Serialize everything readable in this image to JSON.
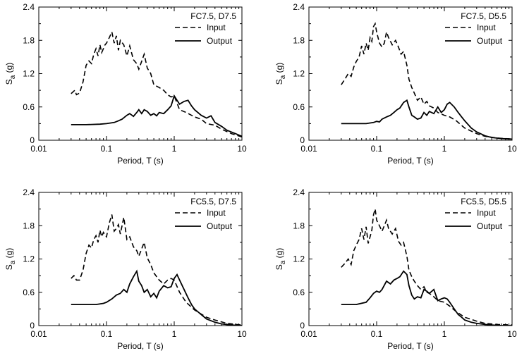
{
  "chart_data": [
    {
      "type": "line",
      "title": "FC7.5, D7.5",
      "xlabel": "Period, T (s)",
      "ylabel_main": "S",
      "ylabel_sub": "a",
      "ylabel_unit": " (g)",
      "xscale": "log",
      "xlim": [
        0.01,
        10
      ],
      "ylim": [
        0,
        2.4
      ],
      "xticks": [
        "0.01",
        "0.1",
        "1",
        "10"
      ],
      "yticks": [
        "0",
        "0.6",
        "1.2",
        "1.8",
        "2.4"
      ],
      "legend_position": "top-right",
      "series": [
        {
          "name": "Input",
          "style": "dashed",
          "x": [
            0.03,
            0.034,
            0.036,
            0.04,
            0.045,
            0.05,
            0.055,
            0.06,
            0.065,
            0.07,
            0.075,
            0.08,
            0.085,
            0.09,
            0.095,
            0.1,
            0.11,
            0.12,
            0.13,
            0.14,
            0.15,
            0.16,
            0.18,
            0.2,
            0.22,
            0.25,
            0.28,
            0.3,
            0.33,
            0.36,
            0.4,
            0.45,
            0.5,
            0.6,
            0.7,
            0.8,
            0.9,
            1.0,
            1.2,
            1.5,
            2.0,
            2.5,
            3.0,
            4.0,
            5.0,
            7.0,
            10.0
          ],
          "y": [
            0.84,
            0.9,
            0.82,
            0.85,
            1.05,
            1.35,
            1.43,
            1.38,
            1.55,
            1.65,
            1.52,
            1.72,
            1.58,
            1.65,
            1.72,
            1.75,
            1.85,
            1.95,
            1.75,
            1.88,
            1.62,
            1.8,
            1.72,
            1.52,
            1.7,
            1.45,
            1.38,
            1.28,
            1.42,
            1.55,
            1.3,
            1.2,
            1.0,
            0.95,
            0.9,
            0.82,
            0.78,
            0.8,
            0.55,
            0.5,
            0.42,
            0.38,
            0.3,
            0.27,
            0.2,
            0.12,
            0.06
          ]
        },
        {
          "name": "Output",
          "style": "solid",
          "x": [
            0.03,
            0.05,
            0.08,
            0.1,
            0.13,
            0.15,
            0.17,
            0.2,
            0.22,
            0.25,
            0.28,
            0.3,
            0.33,
            0.36,
            0.4,
            0.45,
            0.5,
            0.55,
            0.6,
            0.7,
            0.8,
            0.9,
            1.0,
            1.1,
            1.2,
            1.4,
            1.6,
            1.8,
            2.0,
            2.5,
            3.0,
            3.5,
            4.0,
            5.0,
            6.0,
            8.0,
            10.0
          ],
          "y": [
            0.28,
            0.28,
            0.29,
            0.3,
            0.32,
            0.35,
            0.38,
            0.45,
            0.48,
            0.43,
            0.5,
            0.55,
            0.48,
            0.55,
            0.52,
            0.45,
            0.48,
            0.44,
            0.5,
            0.48,
            0.55,
            0.62,
            0.8,
            0.72,
            0.65,
            0.7,
            0.72,
            0.62,
            0.55,
            0.45,
            0.4,
            0.44,
            0.32,
            0.25,
            0.18,
            0.12,
            0.07
          ]
        }
      ]
    },
    {
      "type": "line",
      "title": "FC7.5, D5.5",
      "xlabel": "Period, T (s)",
      "ylabel_main": "S",
      "ylabel_sub": "a",
      "ylabel_unit": " (g)",
      "xscale": "log",
      "xlim": [
        0.01,
        10
      ],
      "ylim": [
        0,
        2.4
      ],
      "xticks": [
        "0.01",
        "0.1",
        "1",
        "10"
      ],
      "yticks": [
        "0",
        "0.6",
        "1.2",
        "1.8",
        "2.4"
      ],
      "legend_position": "top-right",
      "series": [
        {
          "name": "Input",
          "style": "dashed",
          "x": [
            0.03,
            0.034,
            0.038,
            0.042,
            0.046,
            0.05,
            0.055,
            0.06,
            0.065,
            0.07,
            0.075,
            0.08,
            0.085,
            0.09,
            0.095,
            0.1,
            0.11,
            0.12,
            0.13,
            0.14,
            0.15,
            0.17,
            0.19,
            0.21,
            0.23,
            0.25,
            0.28,
            0.3,
            0.33,
            0.36,
            0.4,
            0.45,
            0.5,
            0.55,
            0.6,
            0.7,
            0.8,
            1.0,
            1.2,
            1.5,
            2.0,
            3.0,
            4.0,
            6.0,
            10.0
          ],
          "y": [
            1.0,
            1.1,
            1.2,
            1.15,
            1.32,
            1.42,
            1.5,
            1.7,
            1.55,
            1.75,
            1.62,
            1.85,
            1.78,
            2.05,
            2.1,
            1.95,
            1.75,
            1.68,
            1.75,
            1.95,
            1.85,
            1.72,
            1.8,
            1.68,
            1.55,
            1.6,
            1.35,
            1.1,
            0.95,
            0.85,
            0.72,
            0.78,
            0.65,
            0.7,
            0.62,
            0.58,
            0.5,
            0.45,
            0.42,
            0.35,
            0.22,
            0.12,
            0.07,
            0.04,
            0.02
          ]
        },
        {
          "name": "Output",
          "style": "solid",
          "x": [
            0.03,
            0.05,
            0.07,
            0.09,
            0.1,
            0.11,
            0.12,
            0.14,
            0.16,
            0.18,
            0.2,
            0.22,
            0.25,
            0.28,
            0.3,
            0.33,
            0.36,
            0.4,
            0.45,
            0.5,
            0.55,
            0.6,
            0.7,
            0.8,
            0.9,
            1.0,
            1.1,
            1.2,
            1.4,
            1.6,
            1.8,
            2.0,
            2.5,
            3.0,
            4.0,
            5.0,
            7.0,
            10.0
          ],
          "y": [
            0.3,
            0.3,
            0.3,
            0.32,
            0.34,
            0.33,
            0.38,
            0.42,
            0.45,
            0.5,
            0.55,
            0.58,
            0.68,
            0.72,
            0.6,
            0.45,
            0.42,
            0.38,
            0.4,
            0.5,
            0.45,
            0.52,
            0.48,
            0.6,
            0.5,
            0.55,
            0.65,
            0.68,
            0.6,
            0.5,
            0.42,
            0.35,
            0.22,
            0.15,
            0.08,
            0.05,
            0.03,
            0.02
          ]
        }
      ]
    },
    {
      "type": "line",
      "title": "FC5.5, D7.5",
      "xlabel": "Period, T (s)",
      "ylabel_main": "S",
      "ylabel_sub": "a",
      "ylabel_unit": " (g)",
      "xscale": "log",
      "xlim": [
        0.01,
        10
      ],
      "ylim": [
        0,
        2.4
      ],
      "xticks": [
        "0.01",
        "0.1",
        "1",
        "10"
      ],
      "yticks": [
        "0",
        "0.6",
        "1.2",
        "1.8",
        "2.4"
      ],
      "legend_position": "top-right",
      "series": [
        {
          "name": "Input",
          "style": "dashed",
          "x": [
            0.03,
            0.033,
            0.036,
            0.04,
            0.045,
            0.05,
            0.055,
            0.06,
            0.065,
            0.07,
            0.075,
            0.08,
            0.085,
            0.09,
            0.1,
            0.11,
            0.12,
            0.13,
            0.14,
            0.15,
            0.16,
            0.18,
            0.2,
            0.22,
            0.25,
            0.28,
            0.3,
            0.33,
            0.36,
            0.4,
            0.45,
            0.5,
            0.6,
            0.7,
            0.8,
            0.9,
            1.0,
            1.2,
            1.5,
            2.0,
            3.0,
            4.0,
            6.0,
            10.0
          ],
          "y": [
            0.85,
            0.9,
            0.82,
            0.82,
            1.0,
            1.3,
            1.45,
            1.4,
            1.55,
            1.62,
            1.5,
            1.72,
            1.6,
            1.68,
            1.6,
            1.85,
            2.0,
            1.7,
            1.75,
            1.82,
            1.65,
            1.95,
            1.55,
            1.6,
            1.42,
            1.35,
            1.25,
            1.38,
            1.5,
            1.22,
            1.1,
            0.95,
            0.82,
            0.75,
            0.82,
            0.85,
            0.82,
            0.6,
            0.42,
            0.28,
            0.15,
            0.1,
            0.04,
            0.01
          ]
        },
        {
          "name": "Output",
          "style": "solid",
          "x": [
            0.03,
            0.05,
            0.07,
            0.09,
            0.1,
            0.12,
            0.14,
            0.16,
            0.18,
            0.2,
            0.22,
            0.25,
            0.28,
            0.3,
            0.33,
            0.36,
            0.4,
            0.45,
            0.5,
            0.55,
            0.6,
            0.7,
            0.8,
            0.9,
            1.0,
            1.1,
            1.2,
            1.4,
            1.6,
            1.8,
            2.0,
            2.5,
            3.0,
            4.0,
            5.0,
            7.0,
            10.0
          ],
          "y": [
            0.38,
            0.38,
            0.38,
            0.4,
            0.42,
            0.48,
            0.55,
            0.58,
            0.65,
            0.6,
            0.75,
            0.88,
            0.98,
            0.8,
            0.72,
            0.6,
            0.65,
            0.52,
            0.58,
            0.5,
            0.62,
            0.72,
            0.68,
            0.7,
            0.85,
            0.92,
            0.82,
            0.65,
            0.5,
            0.38,
            0.3,
            0.2,
            0.12,
            0.06,
            0.03,
            0.01,
            0.0
          ]
        }
      ]
    },
    {
      "type": "line",
      "title": "FC5.5, D5.5",
      "xlabel": "Period, T (s)",
      "ylabel_main": "S",
      "ylabel_sub": "a",
      "ylabel_unit": " (g)",
      "xscale": "log",
      "xlim": [
        0.01,
        10
      ],
      "ylim": [
        0,
        2.4
      ],
      "xticks": [
        "0.01",
        "0.1",
        "1",
        "10"
      ],
      "yticks": [
        "0",
        "0.6",
        "1.2",
        "1.8",
        "2.4"
      ],
      "legend_position": "top-right",
      "series": [
        {
          "name": "Input",
          "style": "dashed",
          "x": [
            0.03,
            0.034,
            0.038,
            0.042,
            0.046,
            0.05,
            0.055,
            0.06,
            0.065,
            0.07,
            0.075,
            0.08,
            0.085,
            0.09,
            0.095,
            0.1,
            0.11,
            0.12,
            0.13,
            0.14,
            0.15,
            0.17,
            0.19,
            0.21,
            0.23,
            0.25,
            0.28,
            0.3,
            0.33,
            0.36,
            0.4,
            0.45,
            0.5,
            0.55,
            0.6,
            0.7,
            0.8,
            1.0,
            1.2,
            1.5,
            2.0,
            3.0,
            4.0,
            6.0,
            10.0
          ],
          "y": [
            1.05,
            1.12,
            1.2,
            1.1,
            1.35,
            1.45,
            1.55,
            1.75,
            1.55,
            1.78,
            1.48,
            1.6,
            1.72,
            2.0,
            2.1,
            1.9,
            1.8,
            1.7,
            1.8,
            1.9,
            1.75,
            1.65,
            1.75,
            1.52,
            1.45,
            1.5,
            1.25,
            1.0,
            0.88,
            0.8,
            0.72,
            0.65,
            0.7,
            0.6,
            0.58,
            0.52,
            0.45,
            0.42,
            0.35,
            0.25,
            0.15,
            0.08,
            0.04,
            0.02,
            0.01
          ]
        },
        {
          "name": "Output",
          "style": "solid",
          "x": [
            0.03,
            0.05,
            0.07,
            0.08,
            0.09,
            0.1,
            0.11,
            0.12,
            0.14,
            0.16,
            0.18,
            0.2,
            0.22,
            0.25,
            0.28,
            0.3,
            0.33,
            0.36,
            0.4,
            0.45,
            0.5,
            0.55,
            0.6,
            0.7,
            0.8,
            0.9,
            1.0,
            1.1,
            1.2,
            1.4,
            1.6,
            1.8,
            2.0,
            2.5,
            3.0,
            4.0,
            5.0,
            7.0,
            10.0
          ],
          "y": [
            0.38,
            0.38,
            0.42,
            0.5,
            0.58,
            0.62,
            0.6,
            0.65,
            0.8,
            0.75,
            0.82,
            0.85,
            0.88,
            0.98,
            0.92,
            0.72,
            0.55,
            0.48,
            0.52,
            0.5,
            0.65,
            0.62,
            0.58,
            0.65,
            0.45,
            0.48,
            0.5,
            0.48,
            0.42,
            0.3,
            0.2,
            0.15,
            0.1,
            0.06,
            0.04,
            0.02,
            0.01,
            0.0,
            0.0
          ]
        }
      ]
    }
  ]
}
